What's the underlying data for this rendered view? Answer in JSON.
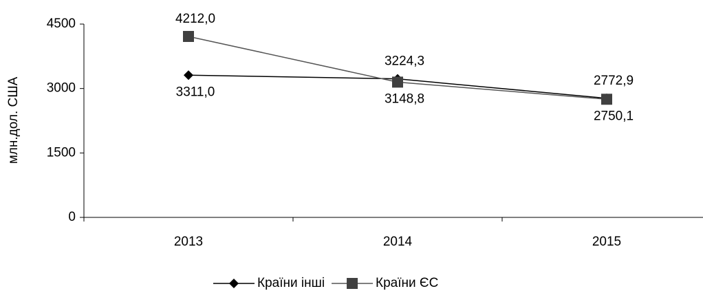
{
  "chart_data": {
    "type": "line",
    "categories": [
      "2013",
      "2014",
      "2015"
    ],
    "y_label": "млн.дол. США",
    "ylim": [
      0,
      4500
    ],
    "yticks": [
      0,
      1500,
      3000,
      4500
    ],
    "legend": "bottom",
    "series": [
      {
        "name": "Країни інші",
        "color": "#000000",
        "marker": "diamond",
        "values": [
          3311.0,
          3224.3,
          2772.9
        ],
        "value_labels": [
          "3311,0",
          "3224,3",
          "2772,9"
        ]
      },
      {
        "name": "Країни ЄС",
        "color": "#404040",
        "marker": "square",
        "values": [
          4212.0,
          3148.8,
          2750.1
        ],
        "value_labels": [
          "4212,0",
          "3148,8",
          "2750,1"
        ]
      }
    ]
  }
}
